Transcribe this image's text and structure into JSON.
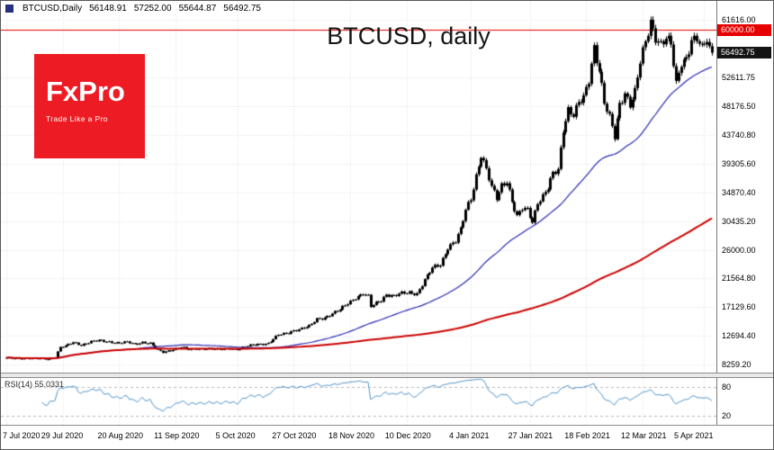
{
  "window": {
    "bg": "#ffffff",
    "border_color": "#585858"
  },
  "header": {
    "symbol": "BTCUSD,Daily",
    "open": "56148.91",
    "high": "57252.00",
    "low": "55644.87",
    "close": "56492.75"
  },
  "title": "BTCUSD, daily",
  "logo": {
    "text": "FxPro",
    "tagline": "Trade Like a Pro",
    "bg_color": "#ed1c24"
  },
  "rsi_panel": {
    "name": "RSI(14)",
    "value": "55.0331",
    "level_labels": [
      "80",
      "20"
    ]
  },
  "chart_data": {
    "type": "candlestick",
    "symbol": "BTCUSD",
    "timeframe": "daily",
    "title": "BTCUSD, daily",
    "candle_color": "#000000",
    "grid_color": "#dedede",
    "y_axis": {
      "min": 7000,
      "max": 64500,
      "gridline_labels": [
        "61616.00",
        "52611.75",
        "48176.50",
        "43740.80",
        "39305.60",
        "34870.40",
        "30435.20",
        "26000.00",
        "21564.80",
        "17129.60",
        "12694.40",
        "8259.20"
      ]
    },
    "special_levels": {
      "resistance": {
        "label": "60000.00",
        "price": 60000,
        "color": "#e60000"
      },
      "current_price": {
        "label": "56492.75",
        "price": 56492.75,
        "bg": "#141414"
      }
    },
    "x_axis": {
      "total_days": 276,
      "labels": [
        {
          "text": "7 Jul 2020",
          "day": 0
        },
        {
          "text": "29 Jul 2020",
          "day": 22
        },
        {
          "text": "20 Aug 2020",
          "day": 44
        },
        {
          "text": "11 Sep 2020",
          "day": 66
        },
        {
          "text": "5 Oct 2020",
          "day": 90
        },
        {
          "text": "27 Oct 2020",
          "day": 112
        },
        {
          "text": "18 Nov 2020",
          "day": 134
        },
        {
          "text": "10 Dec 2020",
          "day": 156
        },
        {
          "text": "4 Jan 2021",
          "day": 181
        },
        {
          "text": "27 Jan 2021",
          "day": 204
        },
        {
          "text": "18 Feb 2021",
          "day": 226
        },
        {
          "text": "12 Mar 2021",
          "day": 248
        },
        {
          "text": "5 Apr 2021",
          "day": 272
        }
      ]
    },
    "price_anchors_day_close": [
      [
        0,
        9240
      ],
      [
        4,
        9270
      ],
      [
        8,
        9180
      ],
      [
        12,
        9150
      ],
      [
        16,
        9160
      ],
      [
        19,
        9450
      ],
      [
        21,
        10900
      ],
      [
        23,
        11050
      ],
      [
        26,
        11700
      ],
      [
        29,
        11300
      ],
      [
        33,
        11750
      ],
      [
        36,
        11950
      ],
      [
        40,
        11800
      ],
      [
        44,
        11550
      ],
      [
        47,
        11680
      ],
      [
        50,
        11400
      ],
      [
        53,
        11720
      ],
      [
        56,
        11500
      ],
      [
        59,
        10400
      ],
      [
        61,
        10150
      ],
      [
        64,
        10500
      ],
      [
        68,
        10940
      ],
      [
        71,
        10550
      ],
      [
        75,
        10750
      ],
      [
        79,
        10700
      ],
      [
        83,
        10540
      ],
      [
        87,
        10790
      ],
      [
        90,
        10620
      ],
      [
        94,
        11080
      ],
      [
        98,
        11420
      ],
      [
        102,
        11520
      ],
      [
        106,
        12800
      ],
      [
        109,
        13060
      ],
      [
        112,
        13560
      ],
      [
        115,
        13800
      ],
      [
        118,
        14100
      ],
      [
        121,
        15300
      ],
      [
        124,
        15550
      ],
      [
        127,
        16100
      ],
      [
        130,
        16680
      ],
      [
        133,
        17750
      ],
      [
        136,
        18650
      ],
      [
        139,
        19150
      ],
      [
        141,
        18720
      ],
      [
        142,
        17150
      ],
      [
        144,
        17750
      ],
      [
        146,
        18250
      ],
      [
        148,
        19150
      ],
      [
        151,
        18800
      ],
      [
        154,
        19200
      ],
      [
        157,
        19420
      ],
      [
        160,
        19250
      ],
      [
        163,
        21300
      ],
      [
        166,
        23100
      ],
      [
        169,
        23750
      ],
      [
        172,
        26450
      ],
      [
        175,
        27300
      ],
      [
        177,
        29000
      ],
      [
        179,
        32100
      ],
      [
        181,
        34000
      ],
      [
        183,
        37550
      ],
      [
        185,
        40750
      ],
      [
        187,
        38300
      ],
      [
        189,
        35500
      ],
      [
        191,
        33900
      ],
      [
        193,
        36050
      ],
      [
        195,
        36800
      ],
      [
        197,
        33500
      ],
      [
        199,
        31000
      ],
      [
        201,
        32250
      ],
      [
        203,
        32100
      ],
      [
        205,
        30420
      ],
      [
        207,
        33500
      ],
      [
        209,
        34300
      ],
      [
        211,
        35500
      ],
      [
        213,
        37600
      ],
      [
        215,
        38300
      ],
      [
        217,
        44800
      ],
      [
        219,
        47900
      ],
      [
        221,
        47000
      ],
      [
        223,
        48600
      ],
      [
        225,
        49200
      ],
      [
        227,
        52150
      ],
      [
        229,
        57450
      ],
      [
        231,
        54100
      ],
      [
        233,
        48900
      ],
      [
        235,
        46300
      ],
      [
        237,
        43250
      ],
      [
        239,
        48400
      ],
      [
        241,
        50400
      ],
      [
        243,
        48750
      ],
      [
        245,
        50500
      ],
      [
        247,
        54900
      ],
      [
        249,
        57800
      ],
      [
        251,
        61150
      ],
      [
        253,
        59050
      ],
      [
        255,
        58100
      ],
      [
        257,
        58900
      ],
      [
        259,
        57600
      ],
      [
        261,
        51300
      ],
      [
        263,
        54900
      ],
      [
        265,
        55800
      ],
      [
        267,
        58750
      ],
      [
        269,
        58700
      ],
      [
        271,
        57050
      ],
      [
        273,
        58200
      ],
      [
        275,
        56492.75
      ]
    ],
    "overlays": [
      {
        "name": "ma-fast",
        "type": "sma",
        "period": 50,
        "color": "#2a2ab4",
        "line_width": 1.2
      },
      {
        "name": "ma-slow",
        "type": "sma",
        "period": 200,
        "color": "#cc0000",
        "line_width": 2
      }
    ],
    "rsi": {
      "period": 14,
      "current_value": 55.0331,
      "levels": [
        80,
        20
      ],
      "color": "#4f94cd",
      "line_width": 1
    }
  }
}
